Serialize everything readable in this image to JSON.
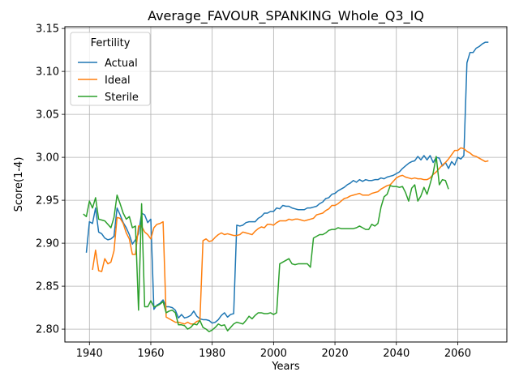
{
  "chart_data": {
    "type": "line",
    "title": "Average_FAVOUR_SPANKING_Whole_Q3_IQ",
    "xlabel": "Years",
    "ylabel": "Score(1-4)",
    "xlim": [
      1932,
      2076
    ],
    "ylim": [
      2.785,
      3.152
    ],
    "xticks": [
      1940,
      1960,
      1980,
      2000,
      2020,
      2040,
      2060
    ],
    "yticks": [
      2.8,
      2.85,
      2.9,
      2.95,
      3.0,
      3.05,
      3.1,
      3.15
    ],
    "ytick_labels": [
      "2.80",
      "2.85",
      "2.90",
      "2.95",
      "3.00",
      "3.05",
      "3.10",
      "3.15"
    ],
    "grid": true,
    "legend": {
      "title": "Fertility",
      "position": "top-left"
    },
    "series": [
      {
        "name": "Actual",
        "color": "#1f77b4",
        "x": [
          1939,
          1940,
          1941,
          1942,
          1943,
          1944,
          1945,
          1946,
          1947,
          1948,
          1949,
          1950,
          1951,
          1952,
          1953,
          1954,
          1955,
          1956,
          1957,
          1958,
          1959,
          1960,
          1961,
          1962,
          1963,
          1964,
          1965,
          1966,
          1967,
          1968,
          1969,
          1970,
          1971,
          1972,
          1973,
          1974,
          1975,
          1976,
          1977,
          1978,
          1979,
          1980,
          1981,
          1982,
          1983,
          1984,
          1985,
          1986,
          1987,
          1988,
          1989,
          1990,
          1991,
          1992,
          1993,
          1994,
          1995,
          1996,
          1997,
          1998,
          1999,
          2000,
          2001,
          2002,
          2003,
          2004,
          2005,
          2006,
          2007,
          2008,
          2009,
          2010,
          2011,
          2012,
          2013,
          2014,
          2015,
          2016,
          2017,
          2018,
          2019,
          2020,
          2021,
          2022,
          2023,
          2024,
          2025,
          2026,
          2027,
          2028,
          2029,
          2030,
          2031,
          2032,
          2033,
          2034,
          2035,
          2036,
          2037,
          2038,
          2039,
          2040,
          2041,
          2042,
          2043,
          2044,
          2045,
          2046,
          2047,
          2048,
          2049,
          2050,
          2051,
          2052,
          2053,
          2054,
          2055,
          2056,
          2057,
          2058,
          2059,
          2060,
          2061,
          2062,
          2063,
          2064,
          2065,
          2066,
          2067,
          2068,
          2069,
          2070
        ],
        "values": [
          2.889,
          2.925,
          2.923,
          2.941,
          2.913,
          2.911,
          2.906,
          2.904,
          2.905,
          2.908,
          2.941,
          2.933,
          2.924,
          2.918,
          2.91,
          2.899,
          2.904,
          2.911,
          2.935,
          2.933,
          2.924,
          2.928,
          2.823,
          2.828,
          2.83,
          2.834,
          2.826,
          2.826,
          2.825,
          2.822,
          2.813,
          2.817,
          2.813,
          2.814,
          2.816,
          2.821,
          2.815,
          2.812,
          2.811,
          2.811,
          2.81,
          2.807,
          2.808,
          2.811,
          2.816,
          2.819,
          2.814,
          2.817,
          2.818,
          2.921,
          2.92,
          2.921,
          2.924,
          2.925,
          2.925,
          2.925,
          2.929,
          2.931,
          2.935,
          2.935,
          2.937,
          2.937,
          2.941,
          2.94,
          2.944,
          2.943,
          2.943,
          2.941,
          2.94,
          2.939,
          2.939,
          2.939,
          2.941,
          2.941,
          2.942,
          2.943,
          2.946,
          2.948,
          2.952,
          2.953,
          2.957,
          2.958,
          2.961,
          2.963,
          2.965,
          2.968,
          2.97,
          2.973,
          2.971,
          2.974,
          2.972,
          2.974,
          2.973,
          2.973,
          2.974,
          2.974,
          2.976,
          2.975,
          2.977,
          2.978,
          2.979,
          2.981,
          2.983,
          2.987,
          2.99,
          2.993,
          2.995,
          2.996,
          3.001,
          2.997,
          3.002,
          2.997,
          3.002,
          2.994,
          3.0,
          2.999,
          2.99,
          2.994,
          2.987,
          2.995,
          2.991,
          3.0,
          2.998,
          3.002,
          3.11,
          3.122,
          3.122,
          3.127,
          3.129,
          3.132,
          3.134,
          3.134
        ]
      },
      {
        "name": "Ideal",
        "color": "#ff7f0e",
        "x": [
          1941,
          1942,
          1943,
          1944,
          1945,
          1946,
          1947,
          1948,
          1949,
          1950,
          1951,
          1952,
          1953,
          1954,
          1955,
          1956,
          1957,
          1958,
          1959,
          1960,
          1961,
          1962,
          1963,
          1964,
          1965,
          1966,
          1967,
          1968,
          1969,
          1970,
          1971,
          1972,
          1973,
          1974,
          1975,
          1976,
          1977,
          1978,
          1979,
          1980,
          1981,
          1982,
          1983,
          1984,
          1985,
          1986,
          1987,
          1988,
          1989,
          1990,
          1991,
          1992,
          1993,
          1994,
          1995,
          1996,
          1997,
          1998,
          1999,
          2000,
          2001,
          2002,
          2003,
          2004,
          2005,
          2006,
          2007,
          2008,
          2009,
          2010,
          2011,
          2012,
          2013,
          2014,
          2015,
          2016,
          2017,
          2018,
          2019,
          2020,
          2021,
          2022,
          2023,
          2024,
          2025,
          2026,
          2027,
          2028,
          2029,
          2030,
          2031,
          2032,
          2033,
          2034,
          2035,
          2036,
          2037,
          2038,
          2039,
          2040,
          2041,
          2042,
          2043,
          2044,
          2045,
          2046,
          2047,
          2048,
          2049,
          2050,
          2051,
          2052,
          2053,
          2054,
          2055,
          2056,
          2057,
          2058,
          2059,
          2060,
          2061,
          2062,
          2063,
          2064,
          2065,
          2066,
          2067,
          2068,
          2069,
          2070
        ],
        "values": [
          2.869,
          2.892,
          2.868,
          2.867,
          2.882,
          2.876,
          2.878,
          2.891,
          2.93,
          2.929,
          2.923,
          2.912,
          2.905,
          2.887,
          2.887,
          2.92,
          2.92,
          2.913,
          2.91,
          2.905,
          2.918,
          2.922,
          2.923,
          2.925,
          2.814,
          2.812,
          2.81,
          2.808,
          2.808,
          2.807,
          2.806,
          2.808,
          2.806,
          2.806,
          2.809,
          2.81,
          2.903,
          2.905,
          2.902,
          2.903,
          2.907,
          2.91,
          2.912,
          2.91,
          2.911,
          2.91,
          2.909,
          2.909,
          2.91,
          2.913,
          2.912,
          2.911,
          2.91,
          2.914,
          2.917,
          2.919,
          2.918,
          2.922,
          2.922,
          2.921,
          2.924,
          2.926,
          2.926,
          2.926,
          2.928,
          2.927,
          2.928,
          2.928,
          2.927,
          2.926,
          2.927,
          2.928,
          2.929,
          2.933,
          2.934,
          2.935,
          2.938,
          2.94,
          2.944,
          2.944,
          2.946,
          2.949,
          2.952,
          2.953,
          2.955,
          2.956,
          2.957,
          2.958,
          2.956,
          2.956,
          2.956,
          2.958,
          2.959,
          2.96,
          2.963,
          2.965,
          2.967,
          2.968,
          2.972,
          2.976,
          2.978,
          2.979,
          2.977,
          2.976,
          2.975,
          2.976,
          2.975,
          2.975,
          2.974,
          2.974,
          2.976,
          2.98,
          2.983,
          2.987,
          2.991,
          2.994,
          2.998,
          3.003,
          3.008,
          3.008,
          3.011,
          3.01,
          3.007,
          3.005,
          3.002,
          3.001,
          2.999,
          2.997,
          2.995,
          2.996
        ]
      },
      {
        "name": "Sterile",
        "color": "#2ca02c",
        "x": [
          1938,
          1939,
          1940,
          1941,
          1942,
          1943,
          1944,
          1945,
          1946,
          1947,
          1948,
          1949,
          1950,
          1951,
          1952,
          1953,
          1954,
          1955,
          1956,
          1957,
          1958,
          1959,
          1960,
          1961,
          1962,
          1963,
          1964,
          1965,
          1966,
          1967,
          1968,
          1969,
          1970,
          1971,
          1972,
          1973,
          1974,
          1975,
          1976,
          1977,
          1978,
          1979,
          1980,
          1981,
          1982,
          1983,
          1984,
          1985,
          1986,
          1987,
          1988,
          1989,
          1990,
          1991,
          1992,
          1993,
          1994,
          1995,
          1996,
          1997,
          1998,
          1999,
          2000,
          2001,
          2002,
          2003,
          2004,
          2005,
          2006,
          2007,
          2008,
          2009,
          2010,
          2011,
          2012,
          2013,
          2014,
          2015,
          2016,
          2017,
          2018,
          2019,
          2020,
          2021,
          2022,
          2023,
          2024,
          2025,
          2026,
          2027,
          2028,
          2029,
          2030,
          2031,
          2032,
          2033,
          2034,
          2035,
          2036,
          2037,
          2038,
          2039,
          2040,
          2041,
          2042,
          2043,
          2044,
          2045,
          2046,
          2047,
          2048,
          2049,
          2050,
          2051,
          2052,
          2053,
          2054,
          2055,
          2056,
          2057
        ],
        "values": [
          2.934,
          2.931,
          2.949,
          2.941,
          2.953,
          2.928,
          2.927,
          2.926,
          2.922,
          2.918,
          2.93,
          2.956,
          2.946,
          2.935,
          2.928,
          2.931,
          2.918,
          2.92,
          2.822,
          2.946,
          2.826,
          2.826,
          2.833,
          2.826,
          2.827,
          2.829,
          2.832,
          2.819,
          2.821,
          2.822,
          2.819,
          2.805,
          2.805,
          2.804,
          2.8,
          2.802,
          2.806,
          2.805,
          2.81,
          2.802,
          2.8,
          2.797,
          2.799,
          2.802,
          2.806,
          2.804,
          2.805,
          2.798,
          2.802,
          2.806,
          2.808,
          2.807,
          2.806,
          2.81,
          2.815,
          2.812,
          2.816,
          2.819,
          2.819,
          2.818,
          2.818,
          2.819,
          2.817,
          2.819,
          2.876,
          2.878,
          2.88,
          2.882,
          2.876,
          2.875,
          2.876,
          2.876,
          2.876,
          2.876,
          2.872,
          2.906,
          2.908,
          2.91,
          2.91,
          2.912,
          2.915,
          2.916,
          2.916,
          2.918,
          2.917,
          2.917,
          2.917,
          2.917,
          2.917,
          2.918,
          2.92,
          2.918,
          2.916,
          2.916,
          2.922,
          2.92,
          2.923,
          2.942,
          2.954,
          2.957,
          2.967,
          2.966,
          2.966,
          2.965,
          2.966,
          2.959,
          2.949,
          2.964,
          2.968,
          2.949,
          2.955,
          2.965,
          2.957,
          2.969,
          2.982,
          3.001,
          2.968,
          2.974,
          2.973,
          2.963
        ]
      }
    ]
  }
}
